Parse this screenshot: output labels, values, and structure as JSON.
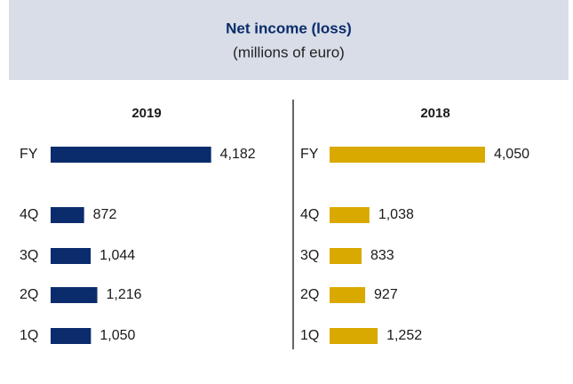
{
  "title": "Net income (loss)",
  "subtitle": "(millions of euro)",
  "chart_data": [
    {
      "type": "bar",
      "title": "2019",
      "categories": [
        "FY",
        "4Q",
        "3Q",
        "2Q",
        "1Q"
      ],
      "values": [
        4182,
        872,
        1044,
        1216,
        1050
      ],
      "value_labels": [
        "4,182",
        "872",
        "1,044",
        "1,216",
        "1,050"
      ],
      "color": "#0b2c6c"
    },
    {
      "type": "bar",
      "title": "2018",
      "categories": [
        "FY",
        "4Q",
        "3Q",
        "2Q",
        "1Q"
      ],
      "values": [
        4050,
        1038,
        833,
        927,
        1252
      ],
      "value_labels": [
        "4,050",
        "1,038",
        "833",
        "927",
        "1,252"
      ],
      "color": "#d9a900"
    }
  ]
}
